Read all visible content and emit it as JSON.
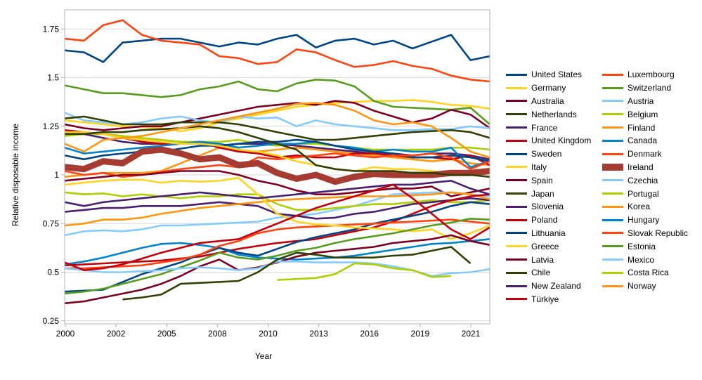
{
  "chart": {
    "background": "#ffffff",
    "plot_border_color": "#b3b3b3",
    "gridline_color": "#d9d9d9",
    "text_color": "#000000",
    "highlighted_series": "Ireland",
    "highlight_color": "#a63b32"
  },
  "chart_data": {
    "type": "line",
    "title": "",
    "xlabel": "Year",
    "ylabel": "Relative disposable income",
    "x": [
      2000,
      2001,
      2002,
      2003,
      2004,
      2005,
      2006,
      2007,
      2008,
      2009,
      2010,
      2011,
      2012,
      2013,
      2014,
      2015,
      2016,
      2017,
      2018,
      2019,
      2020,
      2021,
      2022
    ],
    "x_tick_labels": [
      "2000",
      "2002",
      "2005",
      "2008",
      "2010",
      "2013",
      "2016",
      "2019",
      "2021"
    ],
    "y_ticks": [
      0.25,
      0.5,
      0.75,
      1,
      1.25,
      1.5,
      1.75
    ],
    "y_tick_labels": [
      "0.25",
      "0.5",
      "0.75",
      "1",
      "1.25",
      "1.5",
      "1.75"
    ],
    "ylim": [
      0.25,
      1.75
    ],
    "grid": true,
    "legend_position": "right",
    "series": [
      {
        "name": "United States",
        "color": "#004586",
        "line_width": 2.6,
        "values": [
          1.64,
          1.63,
          1.58,
          1.68,
          1.69,
          1.7,
          1.7,
          1.68,
          1.66,
          1.68,
          1.67,
          1.7,
          1.72,
          1.655,
          1.69,
          1.7,
          1.67,
          1.69,
          1.65,
          1.685,
          1.72,
          1.59,
          1.61
        ]
      },
      {
        "name": "Luxembourg",
        "color": "#ff420e",
        "line_width": 2.6,
        "values": [
          1.7,
          1.69,
          1.77,
          1.795,
          1.72,
          1.69,
          1.68,
          1.67,
          1.61,
          1.6,
          1.57,
          1.58,
          1.645,
          1.63,
          1.59,
          1.555,
          1.565,
          1.585,
          1.56,
          1.545,
          1.51,
          1.49,
          1.48
        ]
      },
      {
        "name": "Germany",
        "color": "#ffd320",
        "line_width": 2.6,
        "values": [
          1.28,
          1.27,
          1.26,
          1.25,
          1.245,
          1.24,
          1.225,
          1.24,
          1.27,
          1.29,
          1.31,
          1.33,
          1.35,
          1.36,
          1.37,
          1.375,
          1.38,
          1.38,
          1.385,
          1.375,
          1.36,
          1.355,
          1.34
        ]
      },
      {
        "name": "Switzerland",
        "color": "#579d1c",
        "line_width": 2.6,
        "values": [
          1.46,
          1.44,
          1.42,
          1.42,
          1.41,
          1.4,
          1.41,
          1.44,
          1.455,
          1.48,
          1.44,
          1.43,
          1.47,
          1.49,
          1.485,
          1.455,
          1.38,
          1.35,
          1.345,
          1.34,
          1.335,
          1.345,
          1.26
        ]
      },
      {
        "name": "Australia",
        "color": "#7e0021",
        "line_width": 2.6,
        "values": [
          1.26,
          1.24,
          1.23,
          1.24,
          1.25,
          1.25,
          1.27,
          1.29,
          1.31,
          1.33,
          1.35,
          1.36,
          1.37,
          1.36,
          1.38,
          1.37,
          1.33,
          1.3,
          1.27,
          1.29,
          1.335,
          1.31,
          1.24
        ]
      },
      {
        "name": "Austria",
        "color": "#83caff",
        "line_width": 2.6,
        "values": [
          1.32,
          1.28,
          1.27,
          1.26,
          1.27,
          1.29,
          1.3,
          1.28,
          1.27,
          1.3,
          1.29,
          1.295,
          1.25,
          1.28,
          1.26,
          1.25,
          1.24,
          1.23,
          1.23,
          1.235,
          1.235,
          1.25,
          1.24
        ]
      },
      {
        "name": "Netherlands",
        "color": "#314004",
        "line_width": 2.6,
        "values": [
          1.29,
          1.3,
          1.28,
          1.26,
          1.26,
          1.26,
          1.27,
          1.27,
          1.27,
          1.26,
          1.24,
          1.22,
          1.2,
          1.18,
          1.18,
          1.19,
          1.2,
          1.21,
          1.22,
          1.225,
          1.23,
          1.22,
          1.19
        ]
      },
      {
        "name": "Belgium",
        "color": "#aecf00",
        "line_width": 2.6,
        "values": [
          1.2,
          1.21,
          1.21,
          1.2,
          1.19,
          1.18,
          1.17,
          1.17,
          1.17,
          1.18,
          1.16,
          1.15,
          1.16,
          1.16,
          1.15,
          1.14,
          1.13,
          1.13,
          1.13,
          1.13,
          1.14,
          1.14,
          1.13
        ]
      },
      {
        "name": "France",
        "color": "#4b1f6f",
        "line_width": 2.6,
        "values": [
          1.22,
          1.21,
          1.19,
          1.17,
          1.16,
          1.16,
          1.16,
          1.16,
          1.15,
          1.16,
          1.16,
          1.16,
          1.15,
          1.14,
          1.13,
          1.12,
          1.11,
          1.11,
          1.1,
          1.11,
          1.11,
          1.1,
          1.08
        ]
      },
      {
        "name": "Finland",
        "color": "#ff950e",
        "line_width": 2.6,
        "values": [
          0.99,
          1.0,
          1.01,
          1.01,
          1.01,
          1.02,
          1.06,
          1.1,
          1.14,
          1.13,
          1.12,
          1.13,
          1.14,
          1.13,
          1.12,
          1.11,
          1.1,
          1.09,
          1.08,
          1.07,
          1.08,
          1.06,
          1.05
        ]
      },
      {
        "name": "United Kingdom",
        "color": "#c5000b",
        "line_width": 2.6,
        "values": [
          1.23,
          1.22,
          1.21,
          1.19,
          1.17,
          1.16,
          1.16,
          1.17,
          1.14,
          1.12,
          1.11,
          1.09,
          1.1,
          1.09,
          1.09,
          1.11,
          1.11,
          1.1,
          1.09,
          1.09,
          1.08,
          1.1,
          1.05
        ]
      },
      {
        "name": "Canada",
        "color": "#0084d1",
        "line_width": 2.6,
        "values": [
          1.14,
          1.11,
          1.12,
          1.13,
          1.14,
          1.15,
          1.16,
          1.17,
          1.16,
          1.14,
          1.15,
          1.16,
          1.16,
          1.17,
          1.15,
          1.14,
          1.12,
          1.13,
          1.12,
          1.12,
          1.14,
          1.04,
          1.07
        ]
      },
      {
        "name": "Sweden",
        "color": "#004586",
        "line_width": 2.6,
        "values": [
          1.1,
          1.08,
          1.1,
          1.11,
          1.12,
          1.12,
          1.135,
          1.15,
          1.15,
          1.16,
          1.17,
          1.17,
          1.18,
          1.17,
          1.15,
          1.13,
          1.12,
          1.11,
          1.09,
          1.09,
          1.1,
          1.09,
          1.07
        ]
      },
      {
        "name": "Denmark",
        "color": "#ff420e",
        "line_width": 2.6,
        "values": [
          1.02,
          1.0,
          1.01,
          0.99,
          1.0,
          1.015,
          1.03,
          1.04,
          1.05,
          1.04,
          1.09,
          1.08,
          1.09,
          1.1,
          1.11,
          1.1,
          1.09,
          1.1,
          1.1,
          1.11,
          1.09,
          1.03,
          1.07
        ]
      },
      {
        "name": "Italy",
        "color": "#ffd320",
        "line_width": 2.6,
        "values": [
          1.22,
          1.22,
          1.21,
          1.19,
          1.18,
          1.17,
          1.16,
          1.16,
          1.15,
          1.13,
          1.12,
          1.1,
          1.07,
          1.05,
          1.03,
          1.02,
          1.04,
          1.03,
          1.03,
          1.02,
          1.0,
          1.02,
          1.03
        ]
      },
      {
        "name": "Ireland",
        "color": "#a63b32",
        "line_width": 9,
        "highlight": true,
        "values": [
          1.04,
          1.03,
          1.07,
          1.06,
          1.12,
          1.13,
          1.11,
          1.08,
          1.09,
          1.05,
          1.06,
          1.01,
          0.98,
          1.0,
          0.965,
          0.99,
          1.005,
          1.0,
          1.0,
          1.0,
          1.01,
          1.01,
          1.02
        ]
      },
      {
        "name": "Spain",
        "color": "#7e0021",
        "line_width": 2.6,
        "values": [
          0.97,
          0.98,
          0.99,
          1.0,
          1.0,
          1.01,
          1.02,
          1.02,
          1.02,
          1.0,
          0.97,
          0.95,
          0.92,
          0.9,
          0.9,
          0.91,
          0.92,
          0.93,
          0.93,
          0.94,
          0.89,
          0.91,
          0.93
        ]
      },
      {
        "name": "Czechia",
        "color": "#83caff",
        "line_width": 2.6,
        "values": [
          0.69,
          0.71,
          0.715,
          0.71,
          0.72,
          0.74,
          0.74,
          0.745,
          0.75,
          0.755,
          0.76,
          0.78,
          0.79,
          0.8,
          0.82,
          0.84,
          0.87,
          0.9,
          0.905,
          0.91,
          0.91,
          0.9,
          0.89
        ]
      },
      {
        "name": "Japan",
        "color": "#314004",
        "line_width": 2.6,
        "values": [
          1.21,
          1.21,
          1.22,
          1.22,
          1.23,
          1.235,
          1.24,
          1.25,
          1.24,
          1.22,
          1.19,
          1.16,
          1.13,
          1.05,
          1.03,
          1.02,
          1.02,
          1.02,
          1.01,
          1.01,
          1.0,
          1.0,
          0.99
        ]
      },
      {
        "name": "Portugal",
        "color": "#aecf00",
        "line_width": 2.6,
        "values": [
          0.91,
          0.9,
          0.905,
          0.89,
          0.9,
          0.89,
          0.88,
          0.89,
          0.89,
          0.9,
          0.9,
          0.85,
          0.82,
          0.82,
          0.83,
          0.84,
          0.85,
          0.85,
          0.86,
          0.87,
          0.86,
          0.86,
          0.87
        ]
      },
      {
        "name": "Slovenia",
        "color": "#4b1f6f",
        "line_width": 2.6,
        "values": [
          0.81,
          0.82,
          0.83,
          0.83,
          0.84,
          0.84,
          0.84,
          0.85,
          0.86,
          0.85,
          0.84,
          0.8,
          0.79,
          0.775,
          0.78,
          0.8,
          0.81,
          0.83,
          0.85,
          0.86,
          0.87,
          0.88,
          0.87
        ]
      },
      {
        "name": "Korea",
        "color": "#ff950e",
        "line_width": 2.6,
        "values": [
          0.74,
          0.75,
          0.77,
          0.77,
          0.78,
          0.8,
          0.815,
          0.83,
          0.84,
          0.85,
          0.86,
          0.87,
          0.875,
          0.88,
          0.885,
          0.89,
          0.89,
          0.89,
          0.895,
          0.9,
          0.91,
          0.9,
          0.875
        ]
      },
      {
        "name": "Poland",
        "color": "#c5000b",
        "line_width": 2.6,
        "values": [
          0.535,
          0.54,
          0.545,
          0.55,
          0.555,
          0.56,
          0.57,
          0.58,
          0.6,
          0.62,
          0.635,
          0.65,
          0.66,
          0.67,
          0.69,
          0.71,
          0.73,
          0.76,
          0.8,
          0.84,
          0.87,
          0.89,
          0.9
        ]
      },
      {
        "name": "Hungary",
        "color": "#0084d1",
        "line_width": 2.6,
        "values": [
          0.54,
          0.555,
          0.575,
          0.6,
          0.625,
          0.645,
          0.65,
          0.64,
          0.625,
          0.59,
          0.575,
          0.57,
          0.565,
          0.57,
          0.575,
          0.585,
          0.6,
          0.615,
          0.63,
          0.645,
          0.65,
          0.66,
          0.67
        ]
      },
      {
        "name": "Lithuania",
        "color": "#004586",
        "line_width": 2.6,
        "values": [
          0.4,
          0.405,
          0.41,
          0.45,
          0.49,
          0.52,
          0.55,
          0.59,
          0.625,
          0.6,
          0.585,
          0.62,
          0.655,
          0.68,
          0.7,
          0.72,
          0.75,
          0.77,
          0.79,
          0.81,
          0.84,
          0.86,
          0.85
        ]
      },
      {
        "name": "Slovak Republic",
        "color": "#ff420e",
        "line_width": 2.6,
        "values": [
          0.52,
          0.52,
          0.525,
          0.53,
          0.535,
          0.55,
          0.565,
          0.59,
          0.635,
          0.66,
          0.7,
          0.72,
          0.73,
          0.735,
          0.74,
          0.745,
          0.75,
          0.755,
          0.76,
          0.765,
          0.77,
          0.76,
          0.75
        ]
      },
      {
        "name": "Greece",
        "color": "#ffd320",
        "line_width": 2.6,
        "values": [
          0.95,
          0.96,
          0.97,
          0.975,
          0.975,
          0.96,
          0.97,
          0.965,
          0.97,
          0.985,
          0.9,
          0.8,
          0.76,
          0.745,
          0.74,
          0.73,
          0.725,
          0.72,
          0.71,
          0.72,
          0.67,
          0.7,
          0.74
        ]
      },
      {
        "name": "Estonia",
        "color": "#579d1c",
        "line_width": 2.6,
        "values": [
          0.39,
          0.4,
          0.415,
          0.44,
          0.465,
          0.49,
          0.525,
          0.56,
          0.6,
          0.575,
          0.565,
          0.585,
          0.61,
          0.625,
          0.65,
          0.67,
          0.685,
          0.7,
          0.72,
          0.74,
          0.755,
          0.775,
          0.77
        ]
      },
      {
        "name": "Latvia",
        "color": "#7e0021",
        "line_width": 2.6,
        "values": [
          0.34,
          0.35,
          0.37,
          0.39,
          0.41,
          0.44,
          0.48,
          0.53,
          0.565,
          0.51,
          0.525,
          0.55,
          0.58,
          0.6,
          0.61,
          0.62,
          0.63,
          0.65,
          0.66,
          0.67,
          0.69,
          0.66,
          0.64
        ]
      },
      {
        "name": "Mexico",
        "color": "#83caff",
        "line_width": 2.6,
        "values": [
          0.52,
          0.51,
          0.5,
          0.5,
          0.505,
          0.51,
          0.52,
          0.525,
          0.52,
          0.51,
          0.52,
          0.555,
          0.555,
          0.55,
          0.55,
          0.55,
          0.545,
          0.53,
          0.51,
          0.48,
          0.495,
          0.5,
          0.515
        ]
      },
      {
        "name": "Chile",
        "color": "#314004",
        "line_width": 2.6,
        "values": [
          null,
          null,
          null,
          0.36,
          0.37,
          0.385,
          0.44,
          0.445,
          0.45,
          0.455,
          0.5,
          0.565,
          0.6,
          0.59,
          0.575,
          0.575,
          0.575,
          0.585,
          0.59,
          0.61,
          0.63,
          0.545,
          null
        ]
      },
      {
        "name": "Costa Rica",
        "color": "#aecf00",
        "line_width": 2.6,
        "values": [
          null,
          null,
          null,
          null,
          null,
          null,
          null,
          null,
          null,
          null,
          null,
          0.46,
          0.465,
          0.47,
          0.49,
          0.545,
          0.54,
          0.52,
          0.51,
          0.475,
          0.48,
          null,
          null
        ]
      },
      {
        "name": "New Zealand",
        "color": "#4b1f6f",
        "line_width": 2.6,
        "values": [
          0.86,
          0.84,
          0.86,
          0.87,
          0.88,
          0.89,
          0.9,
          0.91,
          0.9,
          0.89,
          0.88,
          0.89,
          0.9,
          0.91,
          0.92,
          0.93,
          0.94,
          0.95,
          0.95,
          0.96,
          0.97,
          0.93,
          0.9
        ]
      },
      {
        "name": "Norway",
        "color": "#ff950e",
        "line_width": 2.6,
        "values": [
          1.16,
          1.12,
          1.18,
          1.19,
          1.2,
          1.22,
          1.24,
          1.26,
          1.28,
          1.3,
          1.32,
          1.34,
          1.365,
          1.37,
          1.36,
          1.33,
          1.28,
          1.26,
          1.27,
          1.25,
          1.19,
          1.12,
          1.09
        ]
      },
      {
        "name": "Türkiye",
        "color": "#c5000b",
        "line_width": 2.6,
        "values": [
          0.55,
          0.51,
          0.52,
          0.54,
          0.57,
          0.6,
          0.625,
          0.65,
          0.66,
          0.67,
          0.71,
          0.75,
          0.79,
          0.83,
          0.86,
          0.89,
          0.92,
          0.95,
          0.88,
          0.8,
          0.72,
          0.67,
          0.73
        ]
      }
    ]
  }
}
